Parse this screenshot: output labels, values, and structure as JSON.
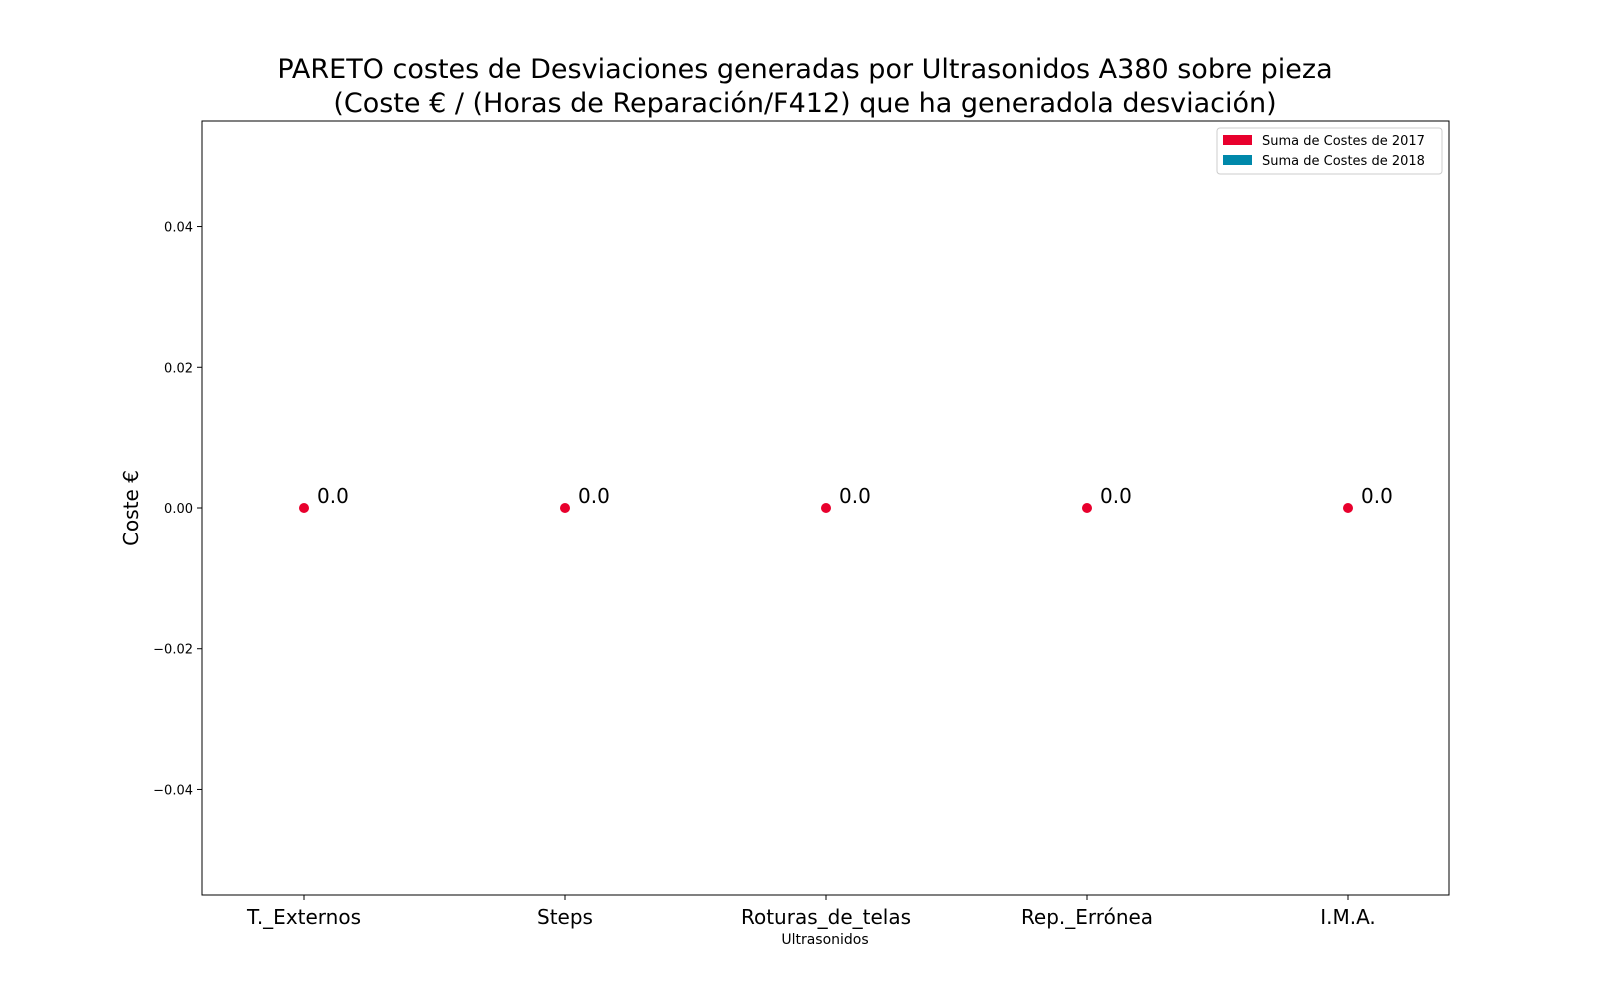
{
  "chart_data": {
    "type": "scatter",
    "title_lines": [
      "PARETO costes de Desviaciones  generadas  por Ultrasonidos A380 sobre pieza",
      "(Coste € / (Horas de Reparación/F412) que ha generadola desviación)"
    ],
    "xlabel": "Ultrasonidos",
    "ylabel": "Coste €",
    "ylim": [
      -0.055,
      0.055
    ],
    "yticks": [
      0.04,
      0.02,
      0.0,
      -0.02,
      -0.04
    ],
    "ytick_labels": [
      "0.04",
      "0.02",
      "0.00",
      "−0.02",
      "−0.04"
    ],
    "categories": [
      "T._Externos",
      "Steps",
      "Roturas_de_telas",
      "Rep._Errónea",
      "I.M.A."
    ],
    "series": [
      {
        "name": "Suma de Costes de 2017",
        "color": "#e8002d",
        "values": [
          0.0,
          0.0,
          0.0,
          0.0,
          0.0
        ]
      }
    ],
    "data_labels": [
      "0.0",
      "0.0",
      "0.0",
      "0.0",
      "0.0"
    ],
    "legend": {
      "position": "top-right",
      "entries": [
        {
          "label": "Suma de Costes de 2017",
          "color": "#e8002d"
        },
        {
          "label": "Suma de Costes de 2018",
          "color": "#0088aa"
        }
      ]
    },
    "grid": false
  }
}
